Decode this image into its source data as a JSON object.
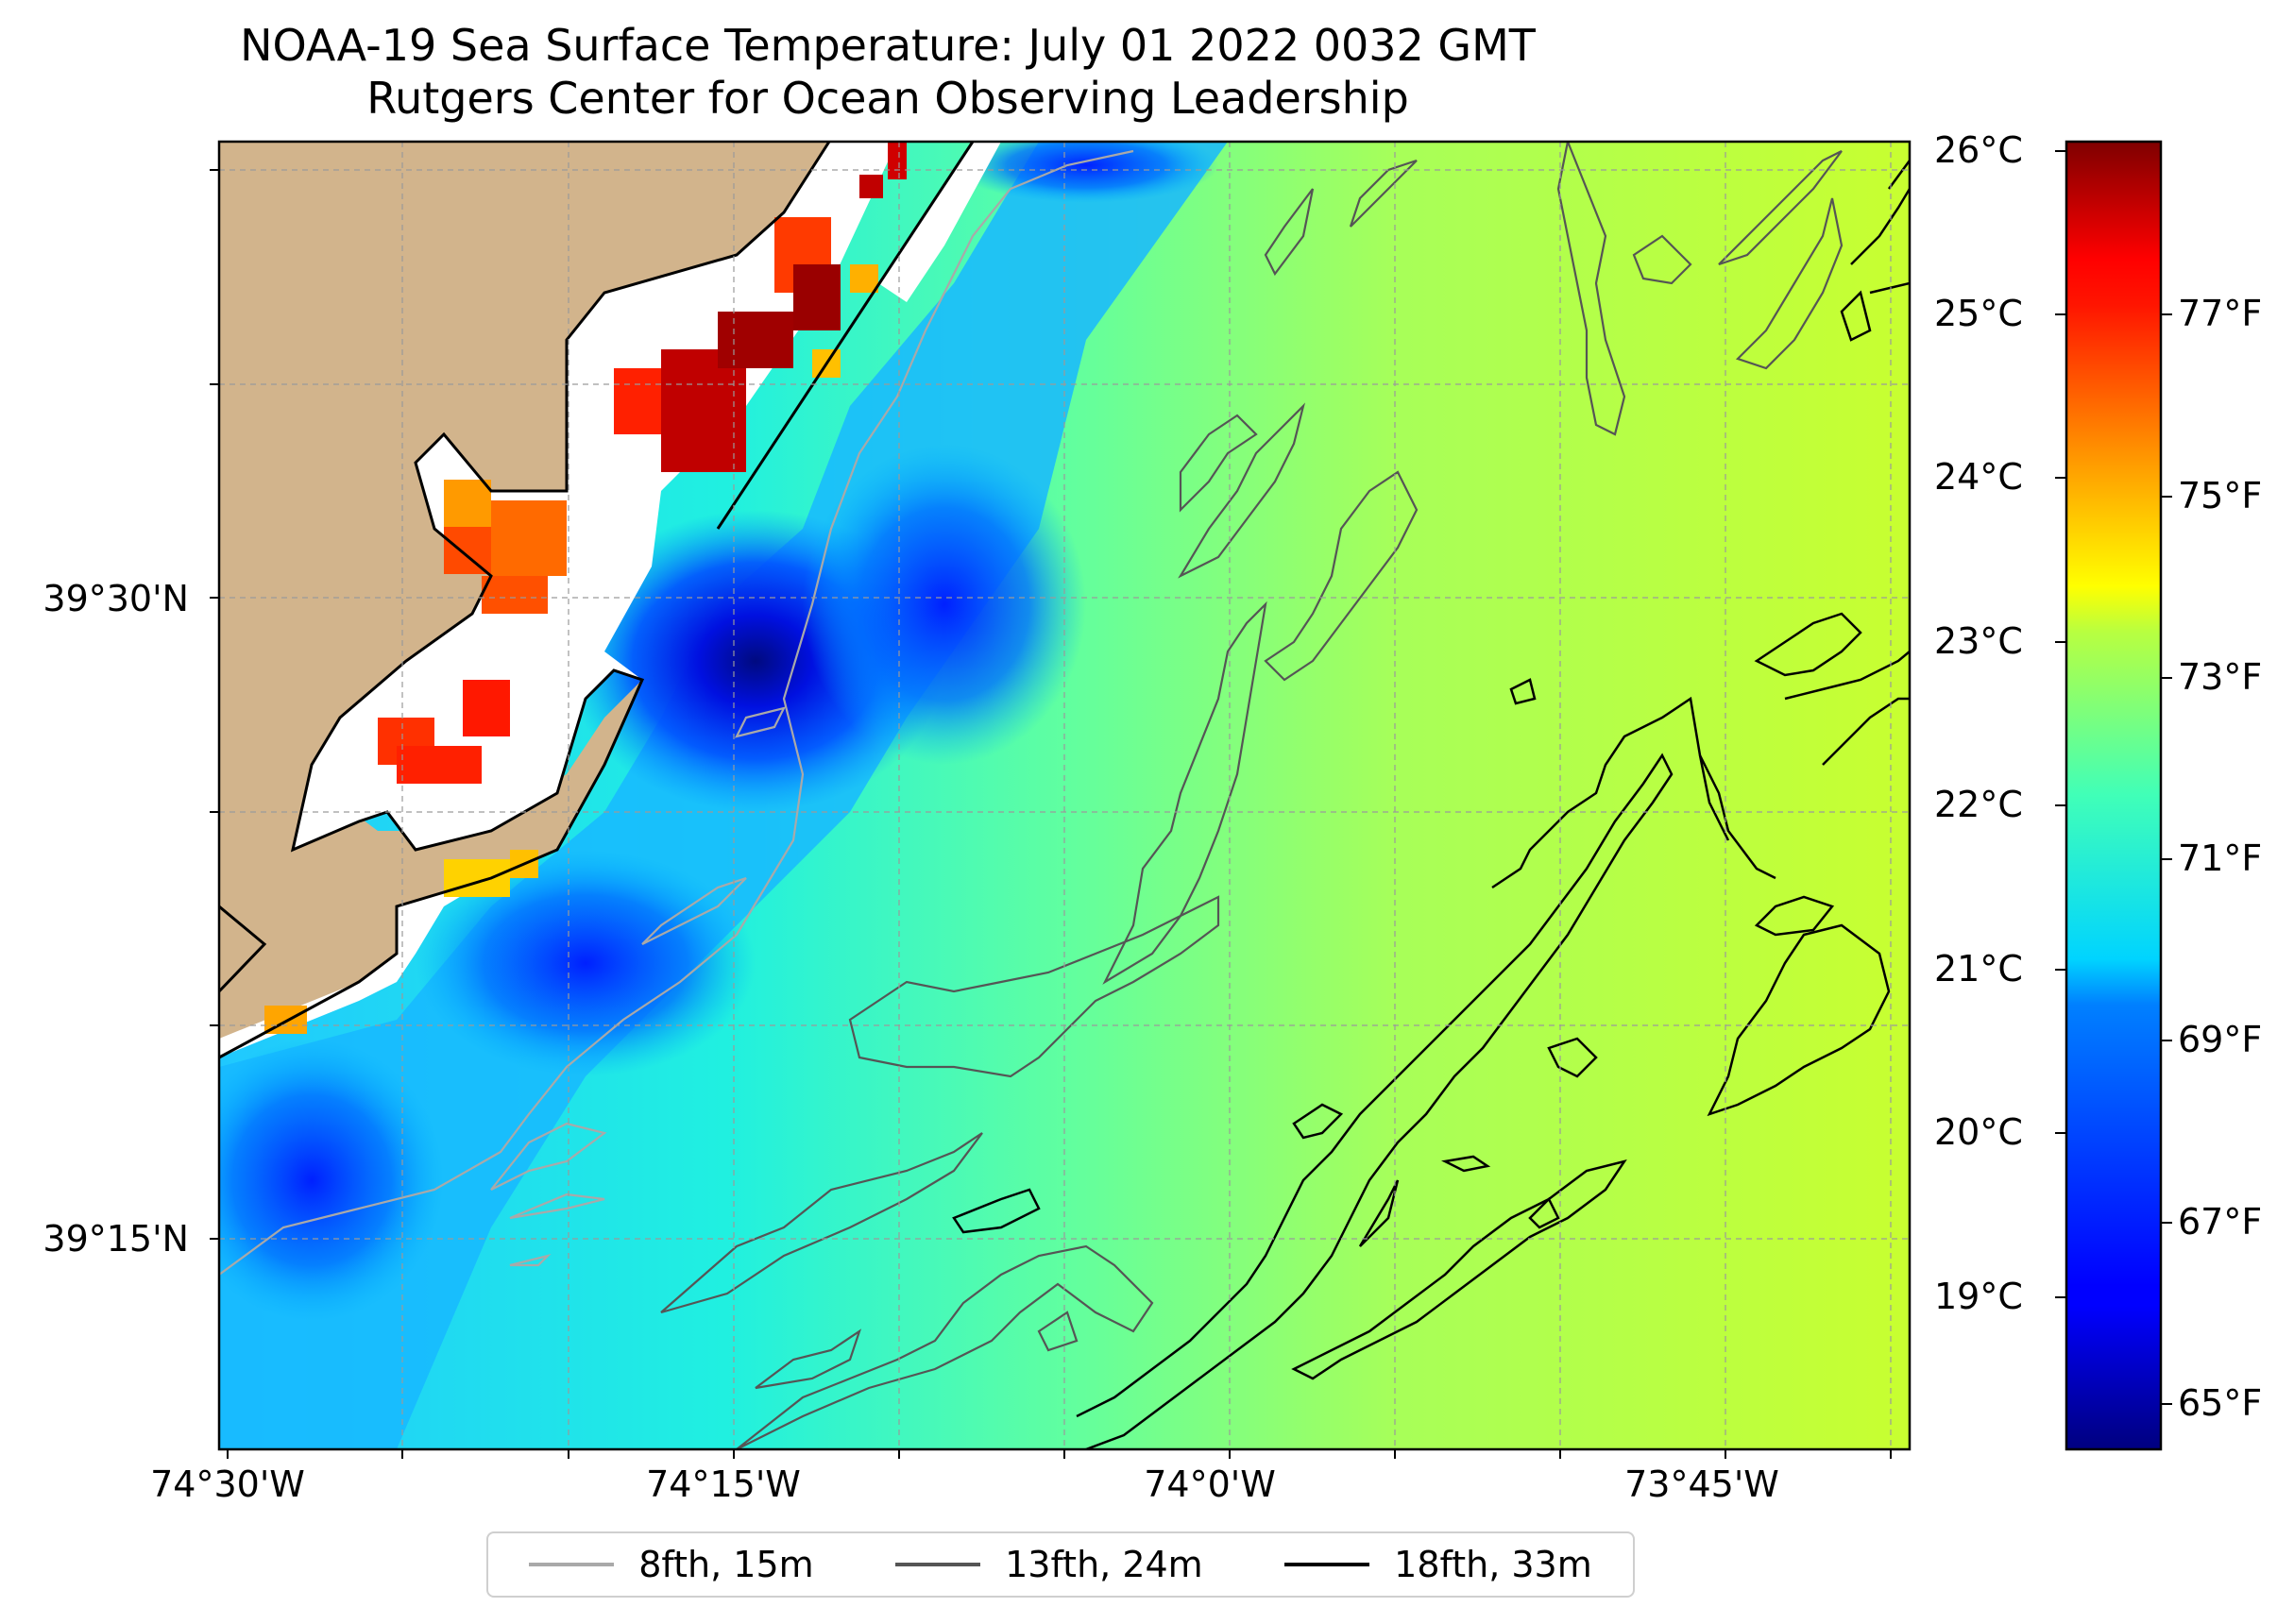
{
  "title": "NOAA-19 Sea Surface Temperature: July 01 2022 0032 GMT",
  "subtitle": "Rutgers Center for Ocean Observing Leadership",
  "map": {
    "lat_labels": [
      "39°30'N",
      "39°15'N"
    ],
    "lon_labels": [
      "74°30'W",
      "74°15'W",
      "74°0'W",
      "73°45'W"
    ],
    "land_color": "#d2b48c",
    "gridlines": true
  },
  "colorbar": {
    "colormap": "jet",
    "celsius_labels": [
      "26°C",
      "25°C",
      "24°C",
      "23°C",
      "22°C",
      "21°C",
      "20°C",
      "19°C"
    ],
    "fahrenheit_labels": [
      "77°F",
      "75°F",
      "73°F",
      "71°F",
      "69°F",
      "67°F",
      "65°F"
    ]
  },
  "legend": {
    "items": [
      {
        "label": "8fth, 15m",
        "color": "#a9a9a9"
      },
      {
        "label": "13fth, 24m",
        "color": "#555555"
      },
      {
        "label": "18fth, 33m",
        "color": "#000000"
      }
    ]
  }
}
